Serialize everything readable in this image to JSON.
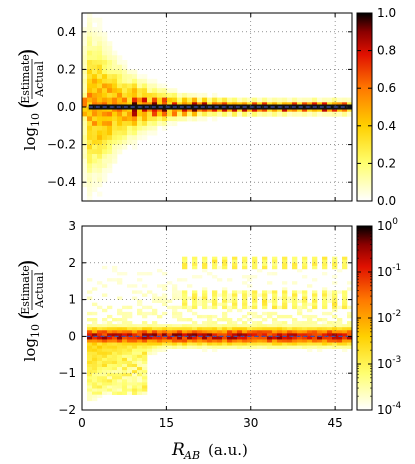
{
  "chart_data": [
    {
      "type": "heatmap",
      "panel": "top",
      "ylabel": {
        "prefix": "log",
        "sub": "10",
        "num": "Estimate",
        "den": "Actual"
      },
      "xlim": [
        0,
        48
      ],
      "ylim": [
        -0.5,
        0.5
      ],
      "yticks": [
        "0.4",
        "0.2",
        "0.0",
        "−0.2",
        "−0.4"
      ],
      "ytick_values": [
        0.4,
        0.2,
        0.0,
        -0.2,
        -0.4
      ],
      "xtick_values": [
        0,
        15,
        30,
        45
      ],
      "grid": true,
      "colorbar": {
        "scale": "linear",
        "range": [
          0.0,
          1.0
        ],
        "ticks": [
          "1.0",
          "0.8",
          "0.6",
          "0.4",
          "0.2",
          "0.0"
        ],
        "tick_values": [
          1.0,
          0.8,
          0.6,
          0.4,
          0.2,
          0.0
        ]
      },
      "profile": {
        "spread_near_zero": 0.45,
        "spread_far": 0.06,
        "peak_density": 1.0,
        "periodic_columns_spacing": 2.0
      }
    },
    {
      "type": "heatmap",
      "panel": "bottom",
      "ylabel": {
        "prefix": "log",
        "sub": "10",
        "num": "Estimate",
        "den": "Actual"
      },
      "xlabel": {
        "symbol": "R",
        "sub": "AB",
        "unit": "(a.u.)"
      },
      "xlim": [
        0,
        48
      ],
      "ylim": [
        -2,
        3
      ],
      "yticks": [
        "3",
        "2",
        "1",
        "0",
        "−1",
        "−2"
      ],
      "ytick_values": [
        3,
        2,
        1,
        0,
        -1,
        -2
      ],
      "xticks": [
        "0",
        "15",
        "30",
        "45"
      ],
      "xtick_values": [
        0,
        15,
        30,
        45
      ],
      "grid": true,
      "colorbar": {
        "scale": "log",
        "range": [
          0.0001,
          1
        ],
        "ticks": [
          {
            "base": "10",
            "exp": "0"
          },
          {
            "base": "10",
            "exp": "-1"
          },
          {
            "base": "10",
            "exp": "-2"
          },
          {
            "base": "10",
            "exp": "-3"
          },
          {
            "base": "10",
            "exp": "-4"
          }
        ],
        "tick_values": [
          1,
          0.1,
          0.01,
          0.001,
          0.0001
        ]
      },
      "profile": {
        "core_band": [
          -0.3,
          0.3
        ],
        "lower_tail_min": -1.6,
        "upper_sparse_max": 2.8,
        "upper_clusters": [
          1.0,
          2.0
        ]
      }
    }
  ]
}
